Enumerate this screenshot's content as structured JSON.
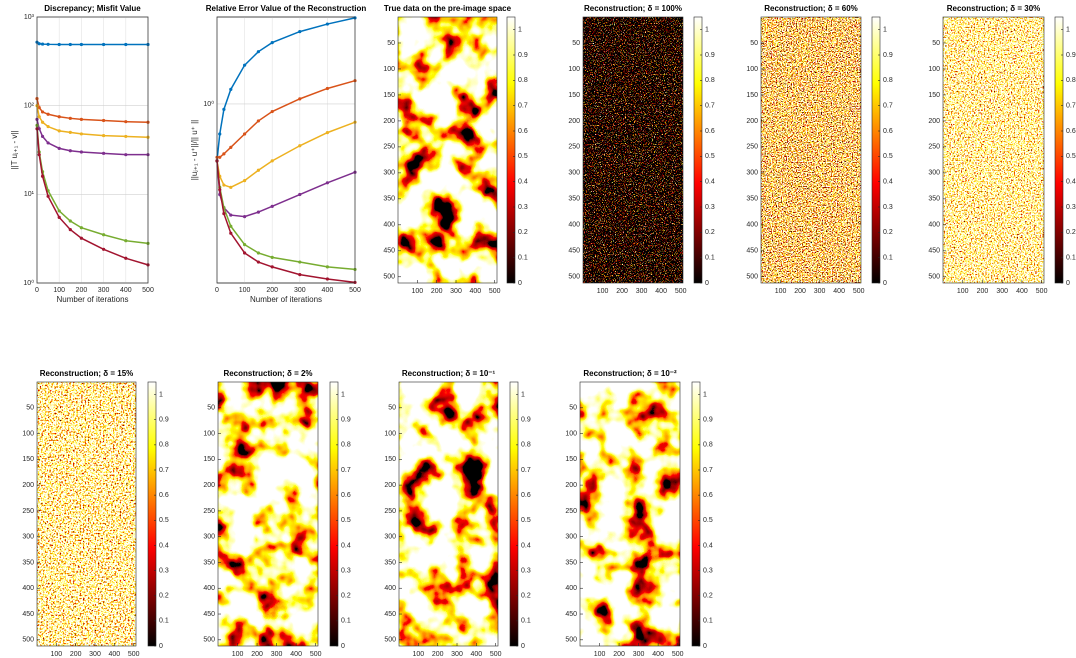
{
  "chart_data": [
    {
      "type": "line",
      "title": "Discrepancy; Misfit Value",
      "xlabel": "Number of iterations",
      "ylabel": "||T uⱼ₊₁ - v||",
      "log_y": true,
      "grid": true,
      "xlim": [
        0,
        500
      ],
      "ylim": [
        1,
        1000
      ],
      "xticks": [
        0,
        100,
        200,
        300,
        400,
        500
      ],
      "yticks": [
        {
          "value": 1,
          "label": "10⁰"
        },
        {
          "value": 10,
          "label": "10¹"
        },
        {
          "value": 100,
          "label": "10²"
        },
        {
          "value": 1000,
          "label": "10³"
        }
      ],
      "x": [
        0,
        10,
        25,
        50,
        100,
        150,
        200,
        300,
        400,
        500
      ],
      "series": [
        {
          "color": "#0072bd",
          "values": [
            520,
            500,
            495,
            492,
            490,
            490,
            490,
            490,
            490,
            490
          ]
        },
        {
          "color": "#d95319",
          "values": [
            120,
            95,
            85,
            80,
            75,
            72,
            70,
            68,
            66,
            65
          ]
        },
        {
          "color": "#edb120",
          "values": [
            100,
            75,
            65,
            58,
            52,
            50,
            48,
            46,
            45,
            44
          ]
        },
        {
          "color": "#7e2f8e",
          "values": [
            70,
            55,
            45,
            38,
            33,
            31,
            30,
            29,
            28,
            28
          ]
        },
        {
          "color": "#77ac30",
          "values": [
            60,
            30,
            18,
            11,
            6.5,
            5,
            4.2,
            3.5,
            3.0,
            2.8
          ]
        },
        {
          "color": "#a2142f",
          "values": [
            55,
            28,
            16,
            9.5,
            5.5,
            4,
            3.2,
            2.4,
            1.9,
            1.6
          ]
        }
      ]
    },
    {
      "type": "line",
      "title": "Relative Error Value of the Reconstruction",
      "xlabel": "Number of iterations",
      "ylabel": "||uⱼ₊₁ - u⁺||/|| u⁺ ||",
      "log_y": true,
      "grid": true,
      "xlim": [
        0,
        500
      ],
      "ylim": [
        0.18,
        2.3
      ],
      "xticks": [
        0,
        100,
        200,
        300,
        400,
        500
      ],
      "yticks": [
        {
          "value": 1,
          "label": "10⁰"
        }
      ],
      "x": [
        0,
        10,
        25,
        50,
        100,
        150,
        200,
        300,
        400,
        500
      ],
      "series": [
        {
          "color": "#0072bd",
          "values": [
            0.58,
            0.75,
            0.95,
            1.15,
            1.45,
            1.65,
            1.8,
            2.0,
            2.15,
            2.28
          ]
        },
        {
          "color": "#d95319",
          "values": [
            0.6,
            0.6,
            0.62,
            0.66,
            0.75,
            0.85,
            0.93,
            1.05,
            1.16,
            1.25
          ]
        },
        {
          "color": "#edb120",
          "values": [
            0.58,
            0.5,
            0.46,
            0.45,
            0.48,
            0.53,
            0.58,
            0.67,
            0.76,
            0.84
          ]
        },
        {
          "color": "#7e2f8e",
          "values": [
            0.58,
            0.42,
            0.37,
            0.345,
            0.34,
            0.355,
            0.375,
            0.42,
            0.47,
            0.52
          ]
        },
        {
          "color": "#77ac30",
          "values": [
            0.58,
            0.45,
            0.37,
            0.31,
            0.26,
            0.24,
            0.23,
            0.22,
            0.21,
            0.205
          ]
        },
        {
          "color": "#a2142f",
          "values": [
            0.58,
            0.44,
            0.35,
            0.29,
            0.24,
            0.22,
            0.21,
            0.195,
            0.187,
            0.181
          ]
        }
      ]
    },
    {
      "type": "image",
      "title": "True data on the pre-image space",
      "colormap": "hot",
      "xlim": [
        0,
        512
      ],
      "ylim": [
        0,
        512
      ],
      "xticks": [
        100,
        200,
        300,
        400,
        500
      ],
      "yticks": [
        50,
        100,
        150,
        200,
        250,
        300,
        350,
        400,
        450,
        500
      ],
      "clim": [
        0,
        1.05
      ],
      "cticks": [
        0,
        0.1,
        0.2,
        0.3,
        0.4,
        0.5,
        0.6,
        0.7,
        0.8,
        0.9,
        1
      ]
    },
    {
      "type": "image",
      "title": "Reconstruction; δ = 100%",
      "colormap": "hot",
      "xlim": [
        0,
        512
      ],
      "ylim": [
        0,
        512
      ],
      "xticks": [
        100,
        200,
        300,
        400,
        500
      ],
      "yticks": [
        50,
        100,
        150,
        200,
        250,
        300,
        350,
        400,
        450,
        500
      ],
      "clim": [
        0,
        1.05
      ],
      "cticks": [
        0,
        0.1,
        0.2,
        0.3,
        0.4,
        0.5,
        0.6,
        0.7,
        0.8,
        0.9,
        1
      ]
    },
    {
      "type": "image",
      "title": "Reconstruction; δ = 60%",
      "colormap": "hot",
      "xlim": [
        0,
        512
      ],
      "ylim": [
        0,
        512
      ],
      "xticks": [
        100,
        200,
        300,
        400,
        500
      ],
      "yticks": [
        50,
        100,
        150,
        200,
        250,
        300,
        350,
        400,
        450,
        500
      ],
      "clim": [
        0,
        1.05
      ],
      "cticks": [
        0,
        0.1,
        0.2,
        0.3,
        0.4,
        0.5,
        0.6,
        0.7,
        0.8,
        0.9,
        1
      ]
    },
    {
      "type": "image",
      "title": "Reconstruction; δ = 30%",
      "colormap": "hot",
      "xlim": [
        0,
        512
      ],
      "ylim": [
        0,
        512
      ],
      "xticks": [
        100,
        200,
        300,
        400,
        500
      ],
      "yticks": [
        50,
        100,
        150,
        200,
        250,
        300,
        350,
        400,
        450,
        500
      ],
      "clim": [
        0,
        1.05
      ],
      "cticks": [
        0,
        0.1,
        0.2,
        0.3,
        0.4,
        0.5,
        0.6,
        0.7,
        0.8,
        0.9,
        1
      ]
    },
    {
      "type": "image",
      "title": "Reconstruction; δ = 15%",
      "colormap": "hot",
      "xlim": [
        0,
        512
      ],
      "ylim": [
        0,
        512
      ],
      "xticks": [
        100,
        200,
        300,
        400,
        500
      ],
      "yticks": [
        50,
        100,
        150,
        200,
        250,
        300,
        350,
        400,
        450,
        500
      ],
      "clim": [
        0,
        1.05
      ],
      "cticks": [
        0,
        0.1,
        0.2,
        0.3,
        0.4,
        0.5,
        0.6,
        0.7,
        0.8,
        0.9,
        1
      ]
    },
    {
      "type": "image",
      "title": "Reconstruction; δ = 2%",
      "colormap": "hot",
      "xlim": [
        0,
        512
      ],
      "ylim": [
        0,
        512
      ],
      "xticks": [
        100,
        200,
        300,
        400,
        500
      ],
      "yticks": [
        50,
        100,
        150,
        200,
        250,
        300,
        350,
        400,
        450,
        500
      ],
      "clim": [
        0,
        1.05
      ],
      "cticks": [
        0,
        0.1,
        0.2,
        0.3,
        0.4,
        0.5,
        0.6,
        0.7,
        0.8,
        0.9,
        1
      ]
    },
    {
      "type": "image",
      "title": "Reconstruction; δ = 10⁻¹",
      "colormap": "hot",
      "xlim": [
        0,
        512
      ],
      "ylim": [
        0,
        512
      ],
      "xticks": [
        100,
        200,
        300,
        400,
        500
      ],
      "yticks": [
        50,
        100,
        150,
        200,
        250,
        300,
        350,
        400,
        450,
        500
      ],
      "clim": [
        0,
        1.05
      ],
      "cticks": [
        0,
        0.1,
        0.2,
        0.3,
        0.4,
        0.5,
        0.6,
        0.7,
        0.8,
        0.9,
        1
      ]
    },
    {
      "type": "image",
      "title": "Reconstruction; δ = 10⁻²",
      "colormap": "hot",
      "xlim": [
        0,
        512
      ],
      "ylim": [
        0,
        512
      ],
      "xticks": [
        100,
        200,
        300,
        400,
        500
      ],
      "yticks": [
        50,
        100,
        150,
        200,
        250,
        300,
        350,
        400,
        450,
        500
      ],
      "clim": [
        0,
        1.05
      ],
      "cticks": [
        0,
        0.1,
        0.2,
        0.3,
        0.4,
        0.5,
        0.6,
        0.7,
        0.8,
        0.9,
        1
      ]
    }
  ]
}
